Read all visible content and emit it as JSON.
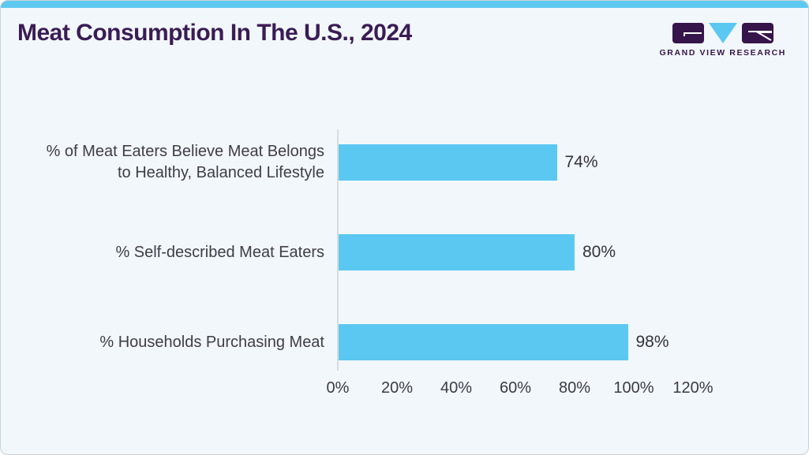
{
  "header": {
    "title": "Meat Consumption In The U.S., 2024"
  },
  "logo": {
    "brand_text": "GRAND VIEW RESEARCH"
  },
  "colors": {
    "accent_blue": "#5bc8f1",
    "brand_purple": "#36154b",
    "title_purple": "#3a1c55",
    "card_background": "#f1f7fa",
    "axis_line": "#d8dcde",
    "text_dark": "#3e3e46"
  },
  "chart_data": {
    "type": "bar",
    "orientation": "horizontal",
    "title": "Meat Consumption In The U.S., 2024",
    "categories": [
      "% of Meat Eaters Believe Meat Belongs\nto Healthy, Balanced Lifestyle",
      "% Self-described Meat Eaters",
      "% Households Purchasing Meat"
    ],
    "values": [
      74,
      80,
      98
    ],
    "value_labels": [
      "74%",
      "80%",
      "98%"
    ],
    "x_ticks": [
      "0%",
      "20%",
      "40%",
      "60%",
      "80%",
      "100%",
      "120%"
    ],
    "xlim": [
      0,
      120
    ],
    "grid": false,
    "legend": false,
    "bar_color": "#5bc8f1"
  }
}
